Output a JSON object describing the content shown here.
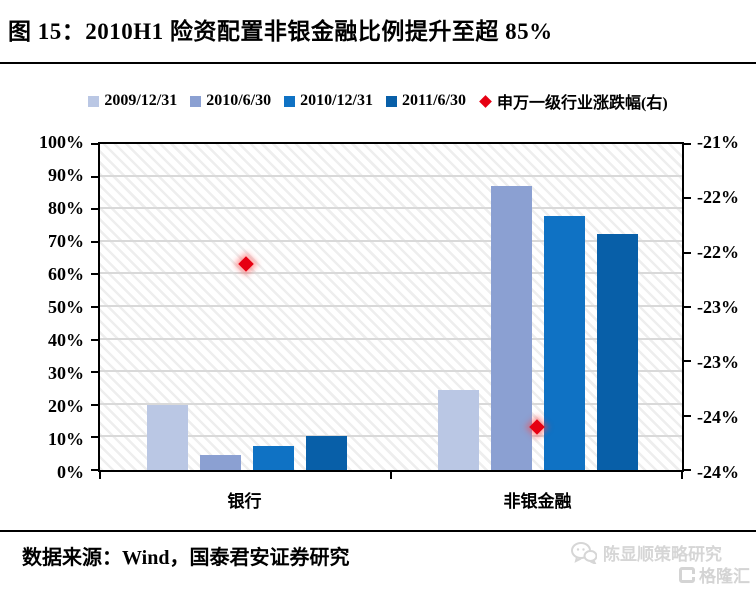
{
  "header": {
    "title": "图 15：2010H1 险资配置非银金融比例提升至超 85%"
  },
  "legend": [
    {
      "label": "2009/12/31",
      "color": "#bac7e4",
      "marker": "square"
    },
    {
      "label": "2010/6/30",
      "color": "#8ba0d2",
      "marker": "square"
    },
    {
      "label": "2010/12/31",
      "color": "#0f72c4",
      "marker": "square"
    },
    {
      "label": "2011/6/30",
      "color": "#085fa8",
      "marker": "square"
    },
    {
      "label": "申万一级行业涨跌幅(右)",
      "color": "#e60012",
      "marker": "diamond"
    }
  ],
  "chart_data": {
    "type": "bar",
    "title": "2010H1 险资配置非银金融比例提升至超 85%",
    "categories": [
      "银行",
      "非银金融"
    ],
    "series": [
      {
        "name": "2009/12/31",
        "axis": "left",
        "color": "#bac7e4",
        "values": [
          20,
          24.5
        ]
      },
      {
        "name": "2010/6/30",
        "axis": "left",
        "color": "#8ba0d2",
        "values": [
          4.5,
          87
        ]
      },
      {
        "name": "2010/12/31",
        "axis": "left",
        "color": "#0f72c4",
        "values": [
          7.5,
          78
        ]
      },
      {
        "name": "2011/6/30",
        "axis": "left",
        "color": "#085fa8",
        "values": [
          10.5,
          72.5
        ]
      },
      {
        "name": "申万一级行业涨跌幅(右)",
        "type": "scatter",
        "axis": "right",
        "color": "#e60012",
        "values": [
          -22.1,
          -23.6
        ]
      }
    ],
    "left_axis": {
      "min": 0,
      "max": 100,
      "tick_labels": [
        "100%",
        "90%",
        "80%",
        "70%",
        "60%",
        "50%",
        "40%",
        "30%",
        "20%",
        "10%",
        "0%"
      ]
    },
    "right_axis": {
      "min": -24,
      "max": -21,
      "tick_labels": [
        "-21%",
        "-22%",
        "-22%",
        "-23%",
        "-23%",
        "-24%",
        "-24%"
      ]
    },
    "grid": "horizontal",
    "plot_background": "diagonal-hatch",
    "legend_position": "top"
  },
  "footer": {
    "source": "数据来源：Wind，国泰君安证券研究"
  },
  "watermark": {
    "account": "陈显顺策略研究",
    "platform": "格隆汇"
  }
}
